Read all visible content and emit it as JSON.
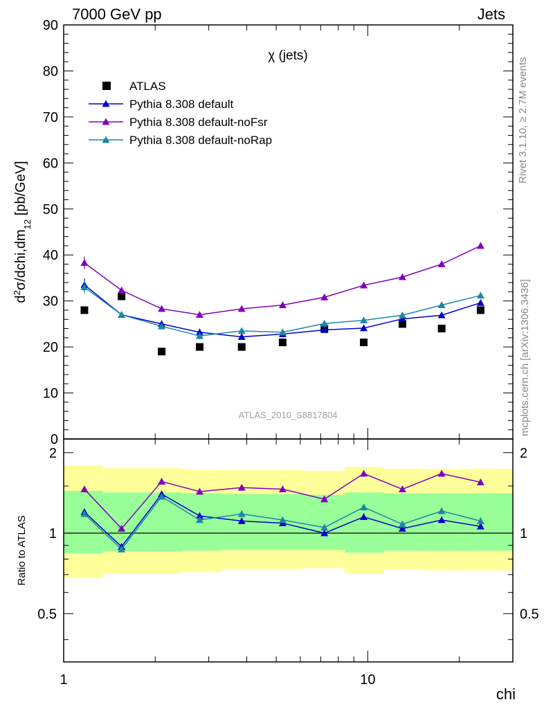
{
  "header": {
    "left": "7000 GeV pp",
    "right": "Jets"
  },
  "side_labels": {
    "rivet": "Rivet 3.1.10, ≥ 2.7M events",
    "mcplots": "mcplots.cern.ch [arXiv:1306.3436]"
  },
  "chart_data": [
    {
      "type": "scatter",
      "title": "χ (jets)",
      "watermark": "ATLAS_2010_S8817804",
      "xlabel": "chi",
      "ylabel": "d²σ/dchi,dm₁₂ [pb/GeV]",
      "xscale": "log",
      "xlim": [
        1,
        30
      ],
      "ylim": [
        0,
        90
      ],
      "yticks": [
        0,
        10,
        20,
        30,
        40,
        50,
        60,
        70,
        80,
        90
      ],
      "xticks": [
        1,
        10
      ],
      "legend_position": "top-left",
      "x": [
        1.17,
        1.55,
        2.1,
        2.8,
        3.85,
        5.25,
        7.2,
        9.7,
        13.0,
        17.5,
        23.5
      ],
      "series": [
        {
          "name": "ATLAS",
          "color": "#000000",
          "marker": "square",
          "values": [
            28,
            31,
            19,
            20,
            20,
            21,
            24,
            21,
            25,
            24,
            28
          ]
        },
        {
          "name": "Pythia 8.308 default",
          "color": "#0000cc",
          "marker": "triangle",
          "values": [
            33.5,
            27,
            25,
            23.2,
            22.2,
            22.8,
            23.7,
            24.1,
            26.1,
            26.9,
            29.6
          ]
        },
        {
          "name": "Pythia 8.308 default-noFsr",
          "color": "#7f00bf",
          "marker": "triangle",
          "values": [
            38.3,
            32.3,
            28.3,
            27.0,
            28.3,
            29.1,
            30.8,
            33.4,
            35.2,
            38.0,
            42.0
          ]
        },
        {
          "name": "Pythia 8.308 default-noRap",
          "color": "#1b87a8",
          "marker": "triangle",
          "values": [
            33,
            27,
            24.5,
            22.4,
            23.5,
            23.2,
            25.1,
            25.8,
            26.9,
            29.1,
            31.2
          ]
        }
      ]
    },
    {
      "type": "line",
      "ylabel": "Ratio to ATLAS",
      "xscale": "log",
      "xlim": [
        1,
        30
      ],
      "ylim": [
        0.33,
        2.25
      ],
      "yticks": [
        0.5,
        1,
        2
      ],
      "x": [
        1.17,
        1.55,
        2.1,
        2.8,
        3.85,
        5.25,
        7.2,
        9.7,
        13.0,
        17.5,
        23.5
      ],
      "bands": {
        "edges": [
          1,
          1.35,
          1.85,
          2.45,
          3.3,
          4.5,
          6.2,
          8.4,
          11.3,
          15.2,
          20.5,
          30
        ],
        "yellow": {
          "color": "#ffff99",
          "lo": [
            0.68,
            0.705,
            0.705,
            0.715,
            0.735,
            0.735,
            0.74,
            0.705,
            0.73,
            0.725,
            0.725
          ],
          "hi": [
            1.79,
            1.75,
            1.75,
            1.73,
            1.72,
            1.72,
            1.71,
            1.77,
            1.74,
            1.74,
            1.74
          ]
        },
        "green": {
          "color": "#99ff99",
          "lo": [
            0.84,
            0.855,
            0.855,
            0.86,
            0.865,
            0.865,
            0.865,
            0.845,
            0.86,
            0.86,
            0.86
          ],
          "hi": [
            1.44,
            1.42,
            1.42,
            1.41,
            1.4,
            1.4,
            1.39,
            1.42,
            1.41,
            1.41,
            1.41
          ]
        }
      },
      "series": [
        {
          "name": "Pythia 8.308 default",
          "color": "#0000cc",
          "values": [
            1.2,
            0.89,
            1.4,
            1.16,
            1.11,
            1.09,
            1.0,
            1.15,
            1.04,
            1.12,
            1.06
          ]
        },
        {
          "name": "Pythia 8.308 default-noFsr",
          "color": "#7f00bf",
          "values": [
            1.46,
            1.04,
            1.56,
            1.43,
            1.48,
            1.46,
            1.34,
            1.67,
            1.46,
            1.67,
            1.55
          ]
        },
        {
          "name": "Pythia 8.308 default-noRap",
          "color": "#1b87a8",
          "values": [
            1.18,
            0.87,
            1.37,
            1.12,
            1.18,
            1.12,
            1.05,
            1.25,
            1.08,
            1.21,
            1.11
          ]
        }
      ]
    }
  ]
}
